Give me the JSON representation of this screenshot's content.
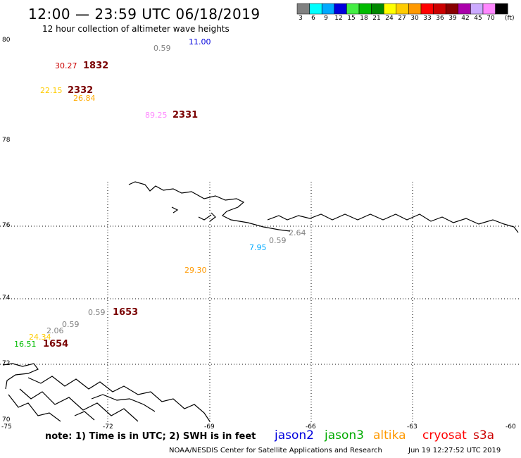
{
  "header": {
    "title": "12:00 — 23:59 UTC 06/18/2019",
    "subtitle": "12 hour collection of altimeter wave heights"
  },
  "colorbar": {
    "ticks": [
      "3",
      "6",
      "9",
      "12",
      "15",
      "18",
      "21",
      "24",
      "27",
      "30",
      "33",
      "36",
      "39",
      "42",
      "45",
      "70"
    ],
    "colors": [
      "#808080",
      "#00ffff",
      "#00aaff",
      "#0000dd",
      "#44ee44",
      "#00bb00",
      "#008800",
      "#ffff00",
      "#ffcc00",
      "#ff9900",
      "#ff0000",
      "#cc0000",
      "#880000",
      "#aa00aa",
      "#ccaaff",
      "#ff88ff",
      "#000000"
    ],
    "unit": "(ft)"
  },
  "axes": {
    "lat_labels": [
      "80",
      "78",
      "76",
      "74",
      "72",
      "70"
    ],
    "lon_labels": [
      "-75",
      "-72",
      "-69",
      "-66",
      "-63",
      "-60"
    ]
  },
  "observations": [
    {
      "value": "0.59",
      "color": "#808080"
    },
    {
      "value": "11.00",
      "color": "#0000dd"
    },
    {
      "value": "30.27",
      "color": "#cc0000"
    },
    {
      "value": "22.15",
      "color": "#ffcc00"
    },
    {
      "value": "26.84",
      "color": "#ffaa00"
    },
    {
      "value": "89.25",
      "color": "#ff88ff"
    },
    {
      "value": "2.64",
      "color": "#808080"
    },
    {
      "value": "0.59",
      "color": "#808080"
    },
    {
      "value": "7.95",
      "color": "#00aaff"
    },
    {
      "value": "29.30",
      "color": "#ff9900"
    },
    {
      "value": "0.59",
      "color": "#808080"
    },
    {
      "value": "0.59",
      "color": "#808080"
    },
    {
      "value": "2.06",
      "color": "#808080"
    },
    {
      "value": "24.34",
      "color": "#ffcc00"
    },
    {
      "value": "16.51",
      "color": "#00bb00"
    }
  ],
  "times": [
    "1832",
    "2332",
    "2331",
    "1653",
    "1654"
  ],
  "footer": {
    "note": "note:  1) Time is in UTC;  2) SWH is in feet",
    "credit": "NOAA/NESDIS Center for Satellite Applications and Research",
    "timestamp": "Jun 19 12:27:52 UTC 2019"
  },
  "satellites": [
    {
      "name": "jason2",
      "color": "#0000dd"
    },
    {
      "name": "jason3",
      "color": "#00aa00"
    },
    {
      "name": "altika",
      "color": "#ff9900"
    },
    {
      "name": "cryosat",
      "color": "#ff0000"
    },
    {
      "name": "s3a",
      "color": "#cc0000"
    }
  ]
}
